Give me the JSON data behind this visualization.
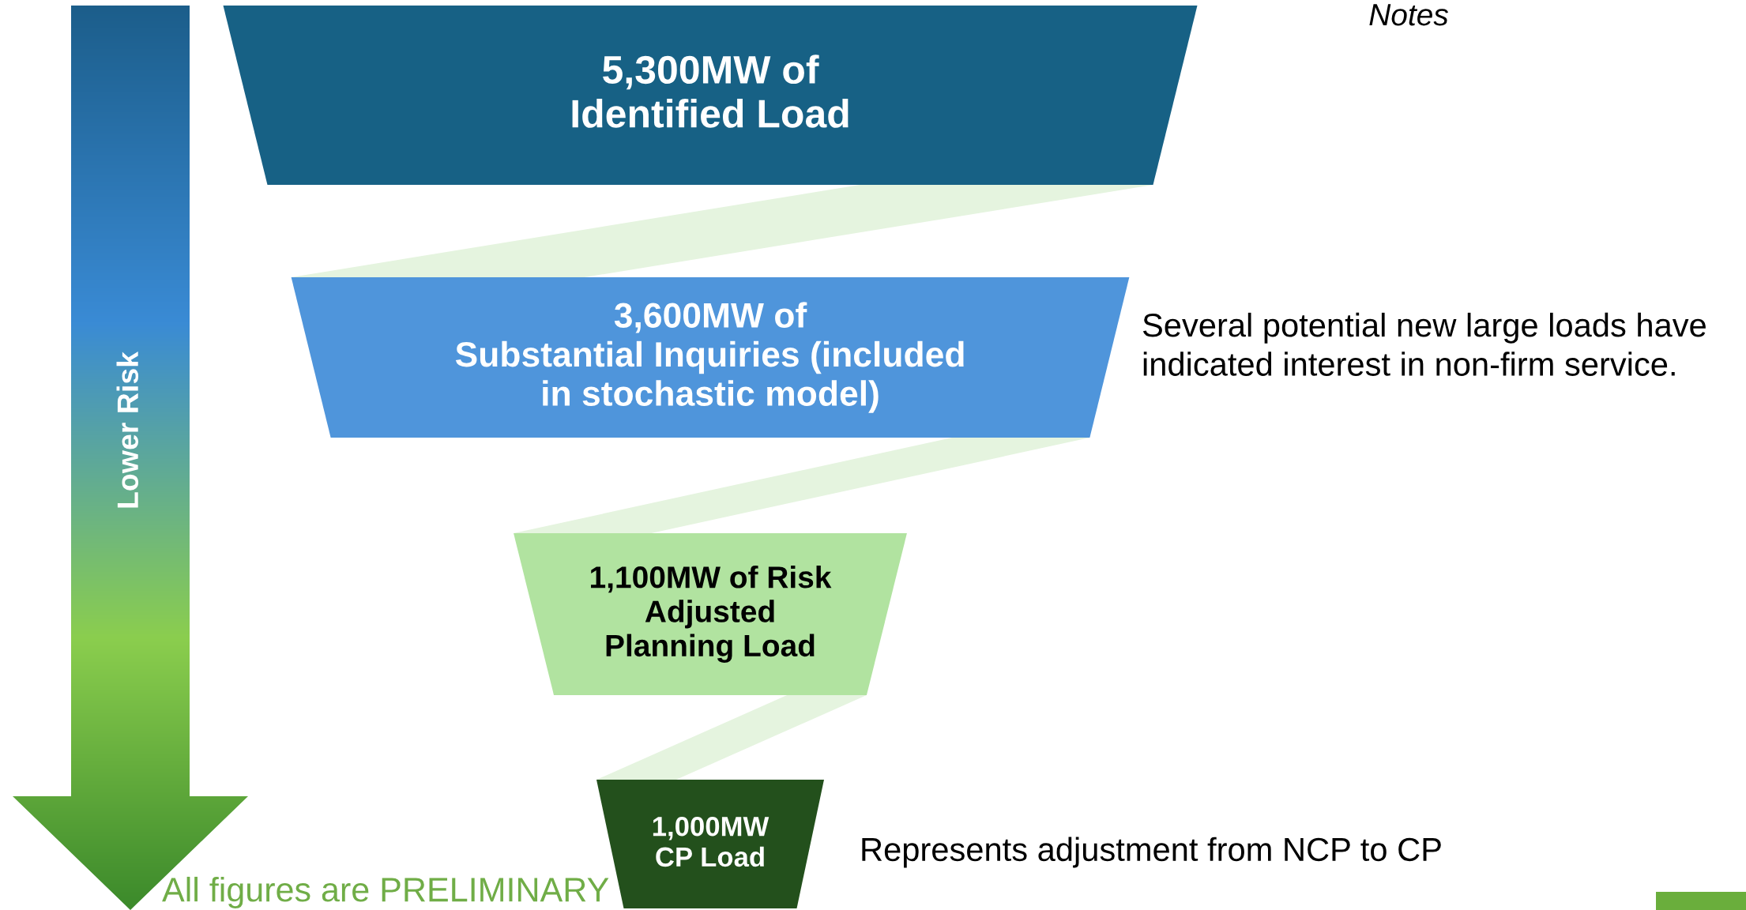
{
  "chart_data": {
    "type": "other",
    "categories": [
      "Identified Load",
      "Substantial Inquiries (included\nin stochastic model)",
      "Adjusted\nPlanning Load",
      "CP Load"
    ],
    "values": [
      5300,
      3600,
      1100,
      1000
    ],
    "value_labels": [
      "5,300MW of",
      "3,600MW of",
      "1,100MW of Risk",
      "1,000MW"
    ],
    "colors": [
      "#176185",
      "#4f95db",
      "#b1e3a0",
      "#23501c"
    ],
    "annotations": [
      "Notes",
      "Several potential new large loads have\nindicated interest in non-firm service.",
      "Represents adjustment from NCP to CP",
      "All figures are PRELIMINARY",
      "Lower Risk"
    ]
  }
}
